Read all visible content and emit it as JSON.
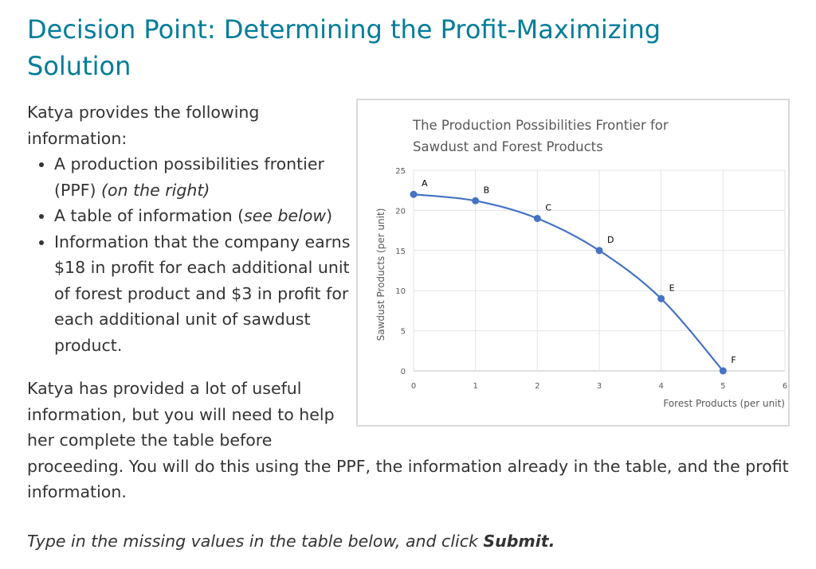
{
  "page": {
    "title": "Decision Point: Determining the Profit-Maximizing Solution",
    "intro": "Katya provides the following information:",
    "bullets": [
      {
        "text": "A production possibilities frontier (PPF) ",
        "italic": "(on the right)",
        "tail": ""
      },
      {
        "text": "A table of information (",
        "italic": "see below",
        "tail": ")"
      },
      {
        "text": "Information that the company earns $18 in profit for each additional unit of forest product and $3 in profit for each additional unit of sawdust product.",
        "italic": "",
        "tail": ""
      }
    ],
    "after_part1": "Katya has provided a lot of useful information, but you will need to help her complete the table before",
    "after_part2": "proceeding. You will do this using the PPF, the information already in the table, and the profit information.",
    "instruction_pre": "Type in the missing values in the table below, and click ",
    "instruction_bold": "Submit.",
    "colors": {
      "title": "#007c9a",
      "series": "#4472c4",
      "text": "#333333"
    }
  },
  "chart_data": {
    "type": "line",
    "title": "The Production Possibilities Frontier for Sawdust and Forest Products",
    "title_lines": [
      "The Production Possibilities Frontier for",
      "Sawdust and Forest Products"
    ],
    "xlabel": "Forest Products (per unit)",
    "ylabel": "Sawdust Products (per unit)",
    "xlim": [
      0,
      6
    ],
    "ylim": [
      0,
      25
    ],
    "xticks": [
      0,
      1,
      2,
      3,
      4,
      5,
      6
    ],
    "yticks": [
      0,
      5,
      10,
      15,
      20,
      25
    ],
    "grid": true,
    "smooth": true,
    "points": [
      {
        "label": "A",
        "x": 0,
        "y": 22
      },
      {
        "label": "B",
        "x": 1,
        "y": 21.2
      },
      {
        "label": "C",
        "x": 2,
        "y": 19
      },
      {
        "label": "D",
        "x": 3,
        "y": 15
      },
      {
        "label": "E",
        "x": 4,
        "y": 9
      },
      {
        "label": "F",
        "x": 5,
        "y": 0
      }
    ]
  }
}
